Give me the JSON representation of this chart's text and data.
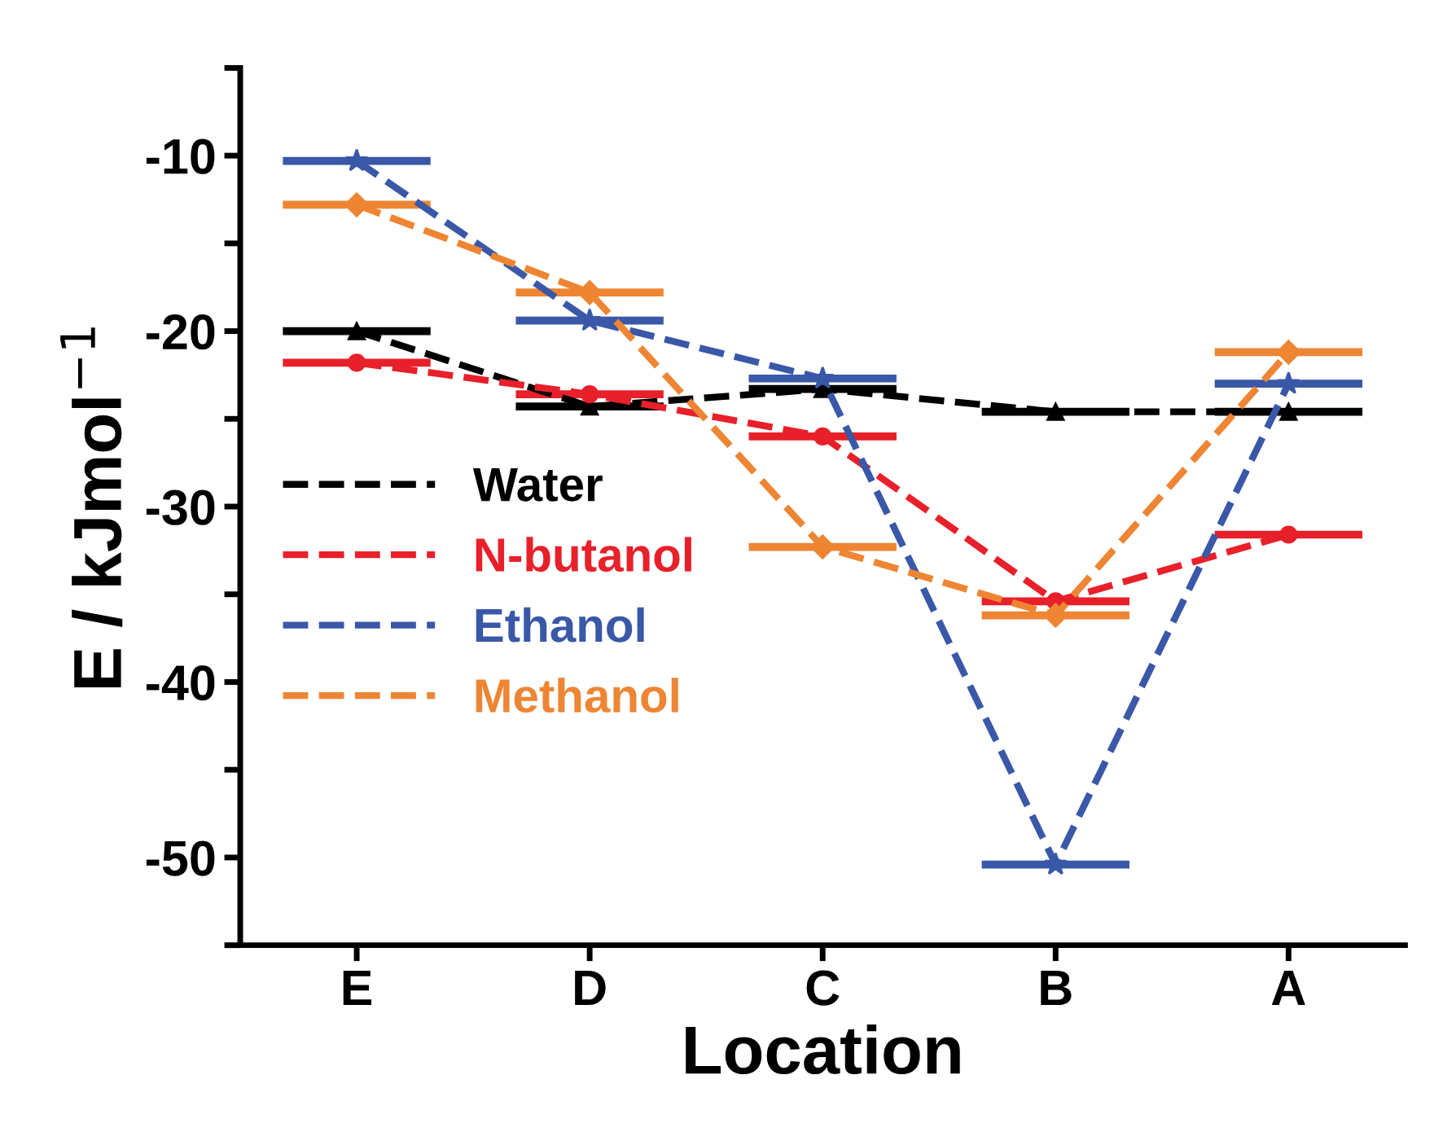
{
  "chart_data": {
    "type": "line",
    "xlabel": "Location",
    "ylabel": "E / kJmol$^{−1}$",
    "categories": [
      "E",
      "D",
      "C",
      "B",
      "A"
    ],
    "series": [
      {
        "name": "Water",
        "color": "#000000",
        "marker": "triangle",
        "values": [
          -20.0,
          -24.3,
          -23.3,
          -24.6,
          -24.6
        ]
      },
      {
        "name": "N-butanol",
        "color": "#e8202a",
        "marker": "circle",
        "values": [
          -21.8,
          -23.6,
          -26.0,
          -35.4,
          -31.6
        ]
      },
      {
        "name": "Ethanol",
        "color": "#3a58a8",
        "marker": "star",
        "values": [
          -10.3,
          -19.4,
          -22.7,
          -50.4,
          -23.0
        ]
      },
      {
        "name": "Methanol",
        "color": "#ee8533",
        "marker": "diamond",
        "values": [
          -12.8,
          -17.8,
          -32.3,
          -36.2,
          -21.2
        ]
      }
    ],
    "line_style": "dashed",
    "ylim": [
      -55,
      -5
    ],
    "yticks": [
      {
        "value": -55,
        "label": null
      },
      -50,
      {
        "value": -45,
        "label": null
      },
      -40,
      {
        "value": -35,
        "label": null
      },
      -30,
      {
        "value": -25,
        "label": null
      },
      -20,
      {
        "value": -15,
        "label": null
      },
      -10,
      {
        "value": -5,
        "label": null
      }
    ],
    "grid": false,
    "legend": "left"
  }
}
